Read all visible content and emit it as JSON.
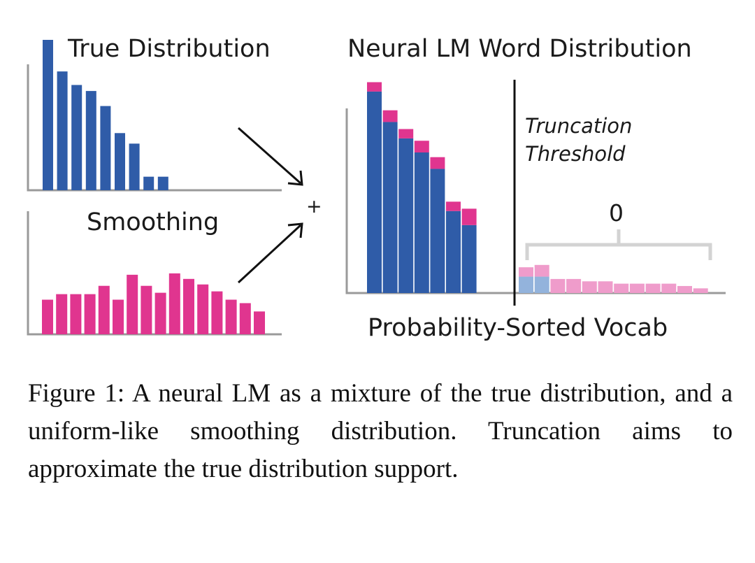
{
  "figure": {
    "true_distribution": {
      "title": "True Distribution",
      "color": "#2f5ca8",
      "values": [
        100,
        79,
        70,
        66,
        56,
        38,
        31,
        9,
        9
      ]
    },
    "smoothing": {
      "title": "Smoothing",
      "color": "#e0358f",
      "values": [
        50,
        58,
        58,
        58,
        70,
        50,
        86,
        70,
        60,
        88,
        80,
        72,
        62,
        50,
        45,
        33
      ]
    },
    "plus_sign": "+",
    "neural_lm": {
      "title": "Neural LM Word Distribution",
      "head_true": [
        86,
        73,
        66,
        60,
        53,
        35,
        29
      ],
      "head_smooth": [
        4,
        5,
        4,
        5,
        5,
        4,
        7
      ],
      "tail_true": [
        7,
        7,
        0,
        0,
        0,
        0,
        0,
        0,
        0,
        0,
        0,
        0
      ],
      "tail_smooth": [
        4,
        5,
        6,
        6,
        5,
        5,
        4,
        4,
        4,
        4,
        3,
        2
      ],
      "colors": {
        "true": "#2f5ca8",
        "smooth": "#e0358f",
        "true_faded": "#93b3dc",
        "smooth_faded": "#ef9ccb"
      }
    },
    "truncation_label_1": "Truncation",
    "truncation_label_2": "Threshold",
    "zero_label": "0",
    "xlabel": "Probability-Sorted Vocab"
  },
  "caption": {
    "text": "Figure 1:  A neural LM as a mixture of the true distribution, and a uniform-like smoothing distribution. Truncation aims to approximate the true distribution support."
  }
}
